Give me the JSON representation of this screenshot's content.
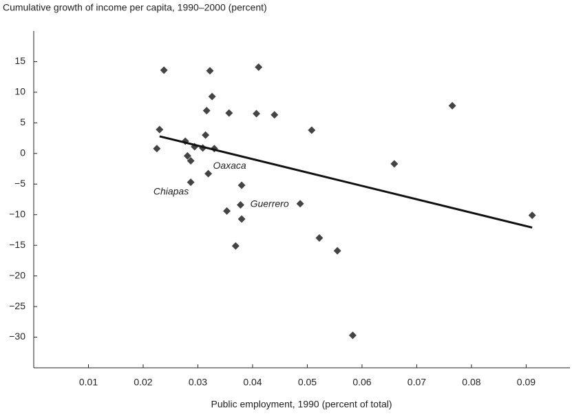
{
  "chart_data": {
    "type": "scatter",
    "title": "Cumulative growth of income per capita, 1990–2000 (percent)",
    "xlabel": "Public employment, 1990 (percent of total)",
    "x": [
      0.0238,
      0.0322,
      0.0411,
      0.0326,
      0.0316,
      0.0357,
      0.0407,
      0.044,
      0.0508,
      0.023,
      0.0225,
      0.0277,
      0.0281,
      0.0287,
      0.0294,
      0.0309,
      0.0314,
      0.033,
      0.0319,
      0.0287,
      0.038,
      0.0378,
      0.0353,
      0.038,
      0.0369,
      0.0487,
      0.0522,
      0.0555,
      0.0583,
      0.0659,
      0.0765,
      0.0911
    ],
    "values": [
      13.6,
      13.5,
      14.1,
      9.3,
      7.0,
      6.6,
      6.5,
      6.3,
      3.8,
      3.9,
      0.8,
      2.0,
      -0.4,
      -1.2,
      1.1,
      0.9,
      3.0,
      0.8,
      -3.3,
      -4.7,
      -5.2,
      -8.4,
      -9.4,
      -10.7,
      -15.1,
      -8.2,
      -13.8,
      -15.9,
      -29.7,
      -1.7,
      7.8,
      -10.1
    ],
    "color": "#444444",
    "trendline": {
      "x": [
        0.023,
        0.0911
      ],
      "y": [
        2.8,
        -12.1
      ],
      "color": "#111111"
    },
    "annotations": [
      {
        "text": "Oaxaca",
        "x": 0.0358,
        "y": -2.1
      },
      {
        "text": "Chiapas",
        "x": 0.0251,
        "y": -6.3
      },
      {
        "text": "Guerrero",
        "x": 0.0431,
        "y": -8.3
      }
    ],
    "xlim": [
      0,
      0.098
    ],
    "ylim": [
      -35,
      20
    ],
    "xticks": [
      0.01,
      0.02,
      0.03,
      0.04,
      0.05,
      0.06,
      0.07,
      0.08,
      0.09
    ],
    "yticks": [
      15,
      10,
      5,
      0,
      {
        "value": -5,
        "label": "−5"
      },
      {
        "value": -10,
        "label": "−10"
      },
      {
        "value": -15,
        "label": "−15"
      },
      {
        "value": -20,
        "label": "−20"
      },
      {
        "value": -25,
        "label": "−25"
      },
      {
        "value": -30,
        "label": "−30"
      }
    ]
  }
}
